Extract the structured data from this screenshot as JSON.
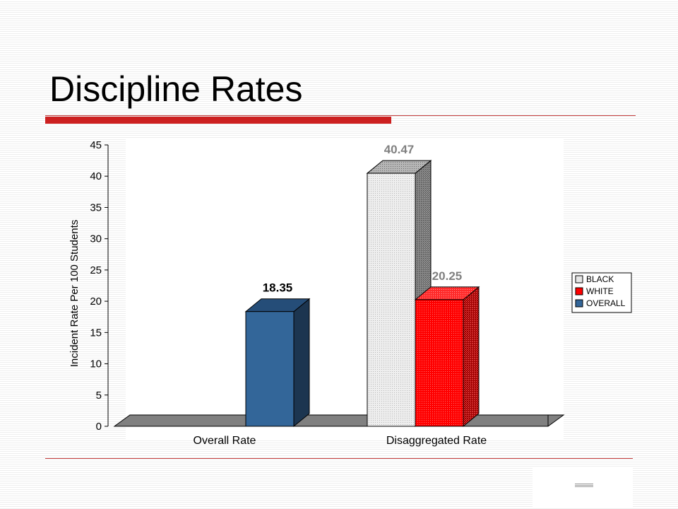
{
  "slide": {
    "title": "Discipline Rates"
  },
  "chart_data": {
    "type": "bar",
    "categories": [
      "Overall Rate",
      "Disaggregated Rate"
    ],
    "ylabel": "Incident Rate Per 100 Students",
    "ylim": [
      0,
      45
    ],
    "yticks": [
      0,
      5,
      10,
      15,
      20,
      25,
      30,
      35,
      40,
      45
    ],
    "style": "3d-clustered",
    "legend_position": "right",
    "series": [
      {
        "name": "BLACK",
        "values": [
          null,
          40.47
        ],
        "labels": [
          null,
          "40.47"
        ],
        "color": "#e6e6e6",
        "label_color": "#808080"
      },
      {
        "name": "WHITE",
        "values": [
          null,
          20.25
        ],
        "labels": [
          null,
          "20.25"
        ],
        "color": "#ff0000",
        "label_color": "#808080"
      },
      {
        "name": "OVERALL",
        "values": [
          18.35,
          null
        ],
        "labels": [
          "18.35",
          null
        ],
        "color": "#336699",
        "label_color": "#000000"
      }
    ]
  }
}
